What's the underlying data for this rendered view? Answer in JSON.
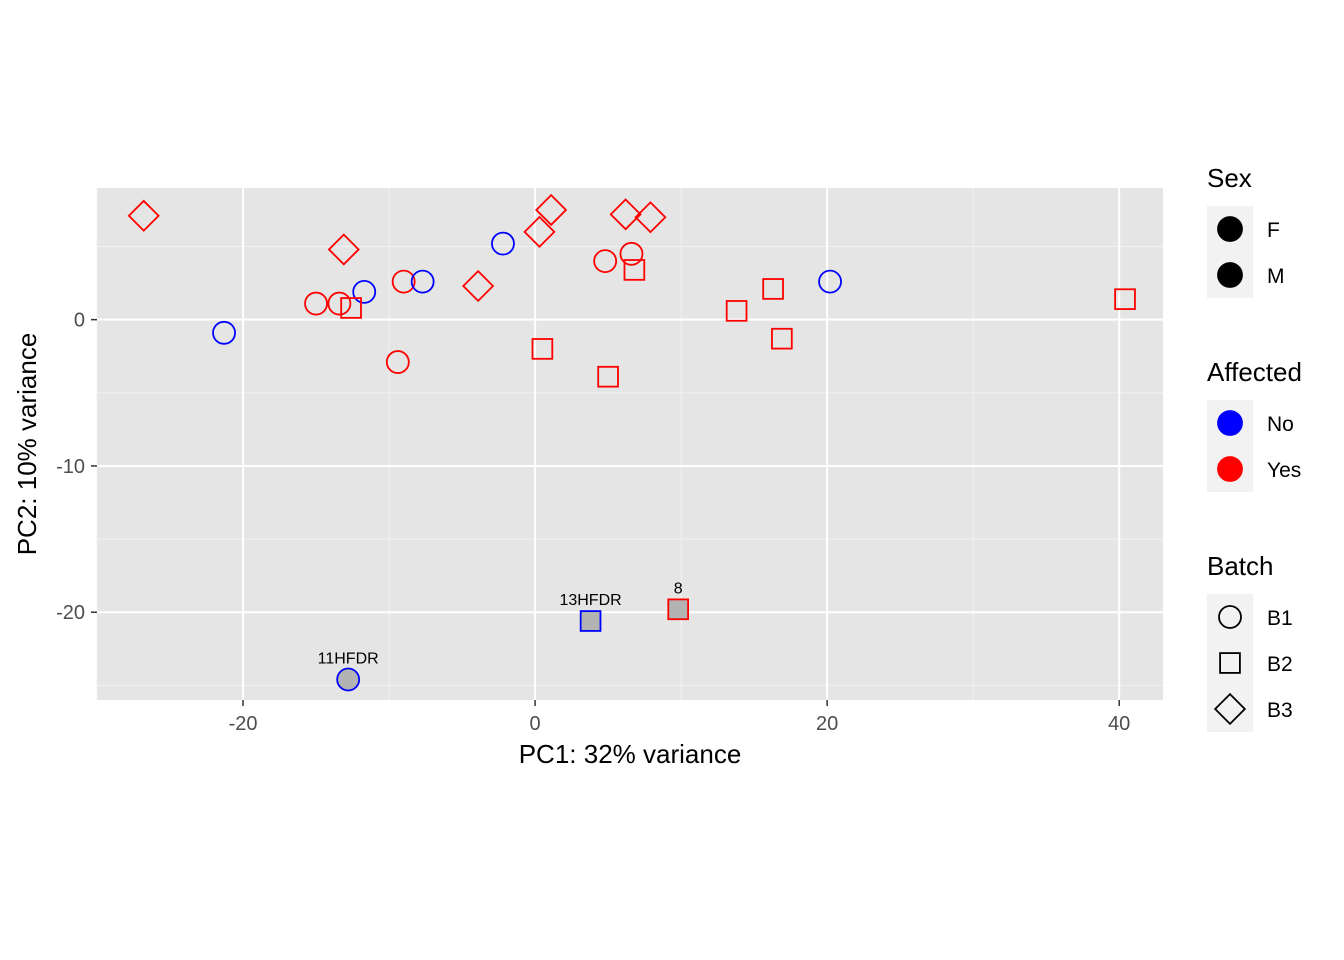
{
  "chart_data": {
    "type": "scatter",
    "title": "",
    "xlabel": "PC1: 32% variance",
    "ylabel": "PC2: 10% variance",
    "xlim": [
      -30,
      43
    ],
    "ylim": [
      -26,
      9
    ],
    "x_ticks": [
      -20,
      0,
      20,
      40
    ],
    "y_ticks": [
      -20,
      -10,
      0
    ],
    "grid": true,
    "background": "#e5e5e5",
    "colors": {
      "No": "#0000ff",
      "Yes": "#ff0000",
      "highlight_fill": "#b3b3b3"
    },
    "legend": {
      "placement": "right",
      "groups": [
        {
          "title": "Sex",
          "kind": "filled-circle",
          "items": [
            "F",
            "M"
          ]
        },
        {
          "title": "Affected",
          "kind": "color",
          "items": [
            "No",
            "Yes"
          ]
        },
        {
          "title": "Batch",
          "kind": "shape",
          "items": [
            {
              "label": "B1",
              "shape": "circle"
            },
            {
              "label": "B2",
              "shape": "square"
            },
            {
              "label": "B3",
              "shape": "diamond"
            }
          ]
        }
      ]
    },
    "points": [
      {
        "x": -26.8,
        "y": 7.1,
        "affected": "Yes",
        "batch": "B3"
      },
      {
        "x": -13.1,
        "y": 4.8,
        "affected": "Yes",
        "batch": "B3"
      },
      {
        "x": -3.9,
        "y": 2.3,
        "affected": "Yes",
        "batch": "B3"
      },
      {
        "x": 0.3,
        "y": 6.0,
        "affected": "Yes",
        "batch": "B3"
      },
      {
        "x": 1.1,
        "y": 7.5,
        "affected": "Yes",
        "batch": "B3"
      },
      {
        "x": 6.2,
        "y": 7.2,
        "affected": "Yes",
        "batch": "B3"
      },
      {
        "x": 7.9,
        "y": 7.0,
        "affected": "Yes",
        "batch": "B3"
      },
      {
        "x": -21.3,
        "y": -0.9,
        "affected": "No",
        "batch": "B1"
      },
      {
        "x": -15.0,
        "y": 1.1,
        "affected": "Yes",
        "batch": "B1"
      },
      {
        "x": -13.4,
        "y": 1.1,
        "affected": "Yes",
        "batch": "B1"
      },
      {
        "x": -11.7,
        "y": 1.9,
        "affected": "No",
        "batch": "B1"
      },
      {
        "x": -9.0,
        "y": 2.6,
        "affected": "Yes",
        "batch": "B1"
      },
      {
        "x": -7.7,
        "y": 2.6,
        "affected": "No",
        "batch": "B1"
      },
      {
        "x": -9.4,
        "y": -2.9,
        "affected": "Yes",
        "batch": "B1"
      },
      {
        "x": -2.2,
        "y": 5.2,
        "affected": "No",
        "batch": "B1"
      },
      {
        "x": 4.8,
        "y": 4.0,
        "affected": "Yes",
        "batch": "B1"
      },
      {
        "x": 6.6,
        "y": 4.5,
        "affected": "Yes",
        "batch": "B1"
      },
      {
        "x": 20.2,
        "y": 2.6,
        "affected": "No",
        "batch": "B1"
      },
      {
        "x": -12.6,
        "y": 0.8,
        "affected": "Yes",
        "batch": "B2"
      },
      {
        "x": 0.5,
        "y": -2.0,
        "affected": "Yes",
        "batch": "B2"
      },
      {
        "x": 5.0,
        "y": -3.9,
        "affected": "Yes",
        "batch": "B2"
      },
      {
        "x": 6.8,
        "y": 3.4,
        "affected": "Yes",
        "batch": "B2"
      },
      {
        "x": 13.8,
        "y": 0.6,
        "affected": "Yes",
        "batch": "B2"
      },
      {
        "x": 16.3,
        "y": 2.1,
        "affected": "Yes",
        "batch": "B2"
      },
      {
        "x": 16.9,
        "y": -1.3,
        "affected": "Yes",
        "batch": "B2"
      },
      {
        "x": 40.4,
        "y": 1.4,
        "affected": "Yes",
        "batch": "B2"
      },
      {
        "x": -12.8,
        "y": -24.6,
        "affected": "No",
        "batch": "B1",
        "highlight": true,
        "label": "11HFDR"
      },
      {
        "x": 3.8,
        "y": -20.6,
        "affected": "No",
        "batch": "B2",
        "highlight": true,
        "label": "13HFDR"
      },
      {
        "x": 9.8,
        "y": -19.8,
        "affected": "Yes",
        "batch": "B2",
        "highlight": true,
        "label": "8"
      }
    ]
  }
}
